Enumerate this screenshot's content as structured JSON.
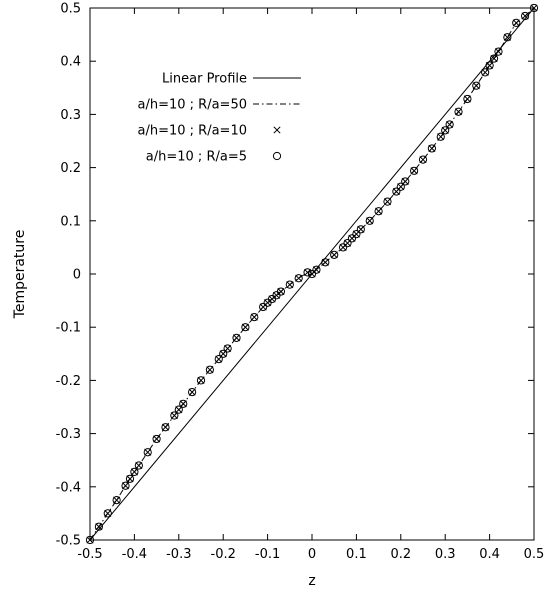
{
  "chart_data": {
    "type": "line",
    "xlabel": "z",
    "ylabel": "Temperature",
    "xlim": [
      -0.5,
      0.5
    ],
    "ylim": [
      -0.5,
      0.5
    ],
    "x_ticks": [
      "-0.5",
      "-0.4",
      "-0.3",
      "-0.2",
      "-0.1",
      "0",
      "0.1",
      "0.2",
      "0.3",
      "0.4",
      "0.5"
    ],
    "y_ticks": [
      "-0.5",
      "-0.4",
      "-0.3",
      "-0.2",
      "-0.1",
      "0",
      "0.1",
      "0.2",
      "0.3",
      "0.4",
      "0.5"
    ],
    "grid": false,
    "legend_position": "top-left",
    "series": [
      {
        "name": "Linear Profile",
        "style": "solid line",
        "x": [
          -0.5,
          0.5
        ],
        "y": [
          -0.5,
          0.5
        ]
      },
      {
        "name": "a/h=10 ; R/a=50",
        "style": "dash-dot line",
        "x": [
          -0.5,
          -0.48,
          -0.46,
          -0.44,
          -0.42,
          -0.41,
          -0.4,
          -0.39,
          -0.37,
          -0.35,
          -0.33,
          -0.31,
          -0.3,
          -0.29,
          -0.27,
          -0.25,
          -0.23,
          -0.21,
          -0.2,
          -0.19,
          -0.17,
          -0.15,
          -0.13,
          -0.11,
          -0.1,
          -0.09,
          -0.08,
          -0.07,
          -0.05,
          -0.03,
          -0.01,
          0.0,
          0.01,
          0.03,
          0.05,
          0.07,
          0.08,
          0.09,
          0.1,
          0.11,
          0.13,
          0.15,
          0.17,
          0.19,
          0.2,
          0.21,
          0.23,
          0.25,
          0.27,
          0.29,
          0.3,
          0.31,
          0.33,
          0.35,
          0.37,
          0.39,
          0.4,
          0.41,
          0.42,
          0.44,
          0.46,
          0.48,
          0.5
        ],
        "y": [
          -0.5,
          -0.475,
          -0.45,
          -0.425,
          -0.398,
          -0.385,
          -0.372,
          -0.36,
          -0.335,
          -0.31,
          -0.288,
          -0.266,
          -0.255,
          -0.244,
          -0.222,
          -0.2,
          -0.18,
          -0.16,
          -0.15,
          -0.14,
          -0.12,
          -0.1,
          -0.081,
          -0.062,
          -0.054,
          -0.047,
          -0.04,
          -0.033,
          -0.02,
          -0.008,
          0.003,
          0.0,
          0.008,
          0.022,
          0.036,
          0.05,
          0.058,
          0.067,
          0.075,
          0.084,
          0.1,
          0.118,
          0.136,
          0.155,
          0.164,
          0.174,
          0.194,
          0.215,
          0.236,
          0.258,
          0.27,
          0.281,
          0.305,
          0.329,
          0.354,
          0.379,
          0.392,
          0.405,
          0.418,
          0.445,
          0.472,
          0.485,
          0.5
        ]
      },
      {
        "name": "a/h=10 ; R/a=10",
        "style": "cross markers",
        "x": [
          -0.5,
          -0.48,
          -0.46,
          -0.44,
          -0.42,
          -0.41,
          -0.4,
          -0.39,
          -0.37,
          -0.35,
          -0.33,
          -0.31,
          -0.3,
          -0.29,
          -0.27,
          -0.25,
          -0.23,
          -0.21,
          -0.2,
          -0.19,
          -0.17,
          -0.15,
          -0.13,
          -0.11,
          -0.1,
          -0.09,
          -0.08,
          -0.07,
          -0.05,
          -0.03,
          -0.01,
          0.0,
          0.01,
          0.03,
          0.05,
          0.07,
          0.08,
          0.09,
          0.1,
          0.11,
          0.13,
          0.15,
          0.17,
          0.19,
          0.2,
          0.21,
          0.23,
          0.25,
          0.27,
          0.29,
          0.3,
          0.31,
          0.33,
          0.35,
          0.37,
          0.39,
          0.4,
          0.41,
          0.42,
          0.44,
          0.46,
          0.48,
          0.5
        ],
        "y": [
          -0.5,
          -0.475,
          -0.45,
          -0.425,
          -0.398,
          -0.385,
          -0.372,
          -0.36,
          -0.335,
          -0.31,
          -0.288,
          -0.266,
          -0.255,
          -0.244,
          -0.222,
          -0.2,
          -0.18,
          -0.16,
          -0.15,
          -0.14,
          -0.12,
          -0.1,
          -0.081,
          -0.062,
          -0.054,
          -0.047,
          -0.04,
          -0.033,
          -0.02,
          -0.008,
          0.003,
          0.0,
          0.008,
          0.022,
          0.036,
          0.05,
          0.058,
          0.067,
          0.075,
          0.084,
          0.1,
          0.118,
          0.136,
          0.155,
          0.164,
          0.174,
          0.194,
          0.215,
          0.236,
          0.258,
          0.27,
          0.281,
          0.305,
          0.329,
          0.354,
          0.379,
          0.392,
          0.405,
          0.418,
          0.445,
          0.472,
          0.485,
          0.5
        ]
      },
      {
        "name": "a/h=10 ; R/a=5",
        "style": "circle markers",
        "x": [
          -0.5,
          -0.48,
          -0.46,
          -0.44,
          -0.42,
          -0.41,
          -0.4,
          -0.39,
          -0.37,
          -0.35,
          -0.33,
          -0.31,
          -0.3,
          -0.29,
          -0.27,
          -0.25,
          -0.23,
          -0.21,
          -0.2,
          -0.19,
          -0.17,
          -0.15,
          -0.13,
          -0.11,
          -0.1,
          -0.09,
          -0.08,
          -0.07,
          -0.05,
          -0.03,
          -0.01,
          0.0,
          0.01,
          0.03,
          0.05,
          0.07,
          0.08,
          0.09,
          0.1,
          0.11,
          0.13,
          0.15,
          0.17,
          0.19,
          0.2,
          0.21,
          0.23,
          0.25,
          0.27,
          0.29,
          0.3,
          0.31,
          0.33,
          0.35,
          0.37,
          0.39,
          0.4,
          0.41,
          0.42,
          0.44,
          0.46,
          0.48,
          0.5
        ],
        "y": [
          -0.5,
          -0.475,
          -0.45,
          -0.425,
          -0.398,
          -0.385,
          -0.372,
          -0.36,
          -0.335,
          -0.31,
          -0.288,
          -0.266,
          -0.255,
          -0.244,
          -0.222,
          -0.2,
          -0.18,
          -0.16,
          -0.15,
          -0.14,
          -0.12,
          -0.1,
          -0.081,
          -0.062,
          -0.054,
          -0.047,
          -0.04,
          -0.033,
          -0.02,
          -0.008,
          0.003,
          0.0,
          0.008,
          0.022,
          0.036,
          0.05,
          0.058,
          0.067,
          0.075,
          0.084,
          0.1,
          0.118,
          0.136,
          0.155,
          0.164,
          0.174,
          0.194,
          0.215,
          0.236,
          0.258,
          0.27,
          0.281,
          0.305,
          0.329,
          0.354,
          0.379,
          0.392,
          0.405,
          0.418,
          0.445,
          0.472,
          0.485,
          0.5
        ]
      }
    ]
  }
}
